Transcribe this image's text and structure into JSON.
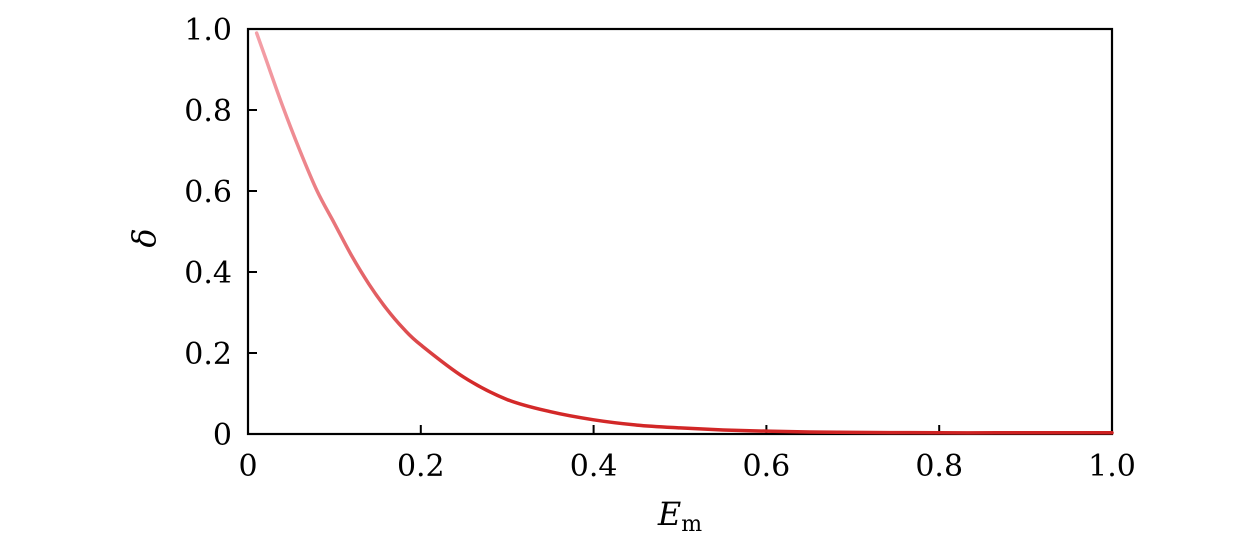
{
  "chart_data": {
    "type": "line",
    "title": "",
    "xlabel": "E",
    "xlabel_subscript": "m",
    "ylabel": "δ",
    "xlim": [
      0,
      1.0
    ],
    "ylim": [
      0,
      1.0
    ],
    "grid": false,
    "x_ticks": [
      0,
      0.2,
      0.4,
      0.6,
      0.8,
      1.0
    ],
    "x_tick_labels": [
      "0",
      "0.2",
      "0.4",
      "0.6",
      "0.8",
      "1.0"
    ],
    "y_ticks": [
      0,
      0.2,
      0.4,
      0.6,
      0.8,
      1.0
    ],
    "y_tick_labels": [
      "0",
      "0.2",
      "0.4",
      "0.6",
      "0.8",
      "1.0"
    ],
    "colors": {
      "line_start": "#f4a0a8",
      "line_end": "#cc1f1f"
    },
    "series": [
      {
        "x": [
          0.01,
          0.02,
          0.04,
          0.06,
          0.08,
          0.1,
          0.12,
          0.14,
          0.16,
          0.18,
          0.2,
          0.25,
          0.3,
          0.35,
          0.4,
          0.45,
          0.5,
          0.55,
          0.6,
          0.65,
          0.7,
          0.8,
          0.9,
          1.0
        ],
        "y": [
          0.99,
          0.93,
          0.81,
          0.7,
          0.6,
          0.52,
          0.44,
          0.37,
          0.31,
          0.26,
          0.22,
          0.14,
          0.085,
          0.055,
          0.035,
          0.022,
          0.015,
          0.01,
          0.007,
          0.005,
          0.004,
          0.003,
          0.003,
          0.003
        ]
      }
    ]
  }
}
